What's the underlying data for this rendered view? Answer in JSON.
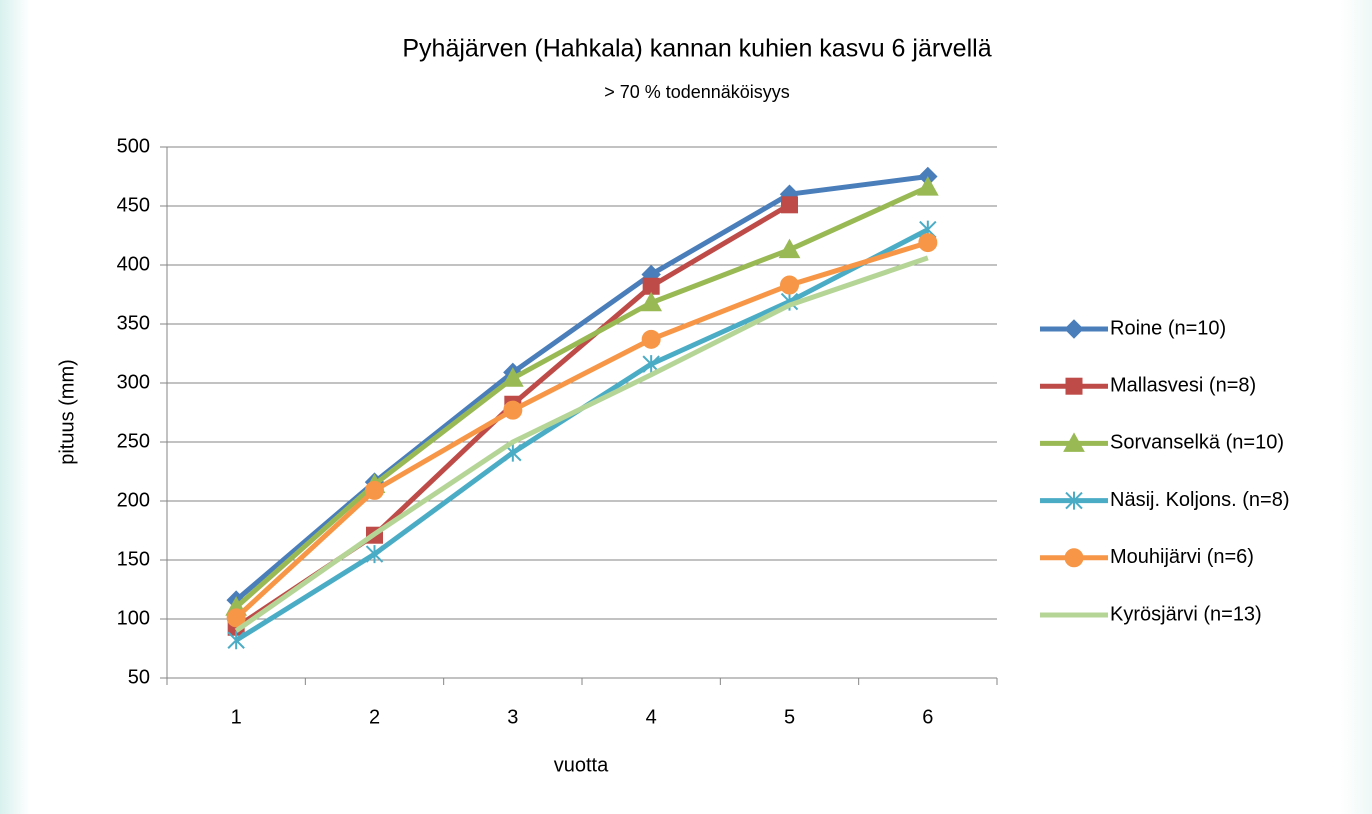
{
  "chart_data": {
    "type": "line",
    "title": "Pyhäjärven (Hahkala) kannan kuhien kasvu 6 järvellä",
    "subtitle": "> 70 % todennäköisyys",
    "x_label": "vuotta",
    "y_label": "pituus (mm)",
    "categories": [
      "1",
      "2",
      "3",
      "4",
      "5",
      "6"
    ],
    "series": [
      {
        "name": "Roine (n=10)",
        "color": "#4a7ebb",
        "marker": "diamond",
        "values": [
          116,
          216,
          309,
          392,
          460,
          475
        ]
      },
      {
        "name": "Mallasvesi (n=8)",
        "color": "#be4b48",
        "marker": "square",
        "values": [
          93,
          171,
          282,
          382,
          451,
          null
        ]
      },
      {
        "name": "Sorvanselkä (n=10)",
        "color": "#98b954",
        "marker": "triangle",
        "values": [
          110,
          214,
          304,
          368,
          413,
          466
        ]
      },
      {
        "name": "Näsij. Koljons. (n=8)",
        "color": "#4bacc6",
        "marker": "asterisk",
        "values": [
          82,
          155,
          241,
          316,
          369,
          430
        ]
      },
      {
        "name": "Mouhijärvi (n=6)",
        "color": "#f79646",
        "marker": "circle",
        "values": [
          101,
          209,
          277,
          337,
          383,
          419
        ]
      },
      {
        "name": "Kyrösjärvi (n=13)",
        "color": "#b5d597",
        "marker": "none",
        "values": [
          90,
          172,
          250,
          307,
          366,
          406
        ]
      }
    ],
    "ylim": [
      50,
      500
    ],
    "yticks": [
      50,
      100,
      150,
      200,
      250,
      300,
      350,
      400,
      450,
      500
    ],
    "grid": true,
    "legend": "right"
  }
}
